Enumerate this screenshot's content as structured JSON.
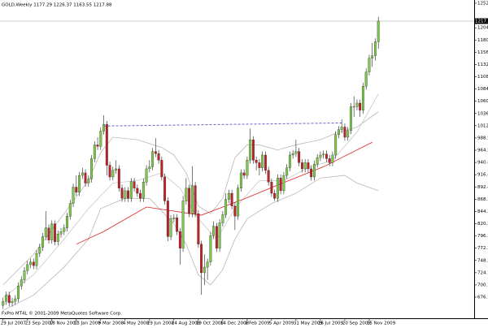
{
  "chart_data": {
    "type": "candlestick",
    "title": "GOLD,Weekly  1177.29 1226.37 1163.55 1217.88",
    "footer": "FxPro MT4L © 2001-2009 MetaQuotes Software Corp.",
    "up_color": "#7cc84a",
    "down_color": "#c0202a",
    "open": [
      660,
      668,
      680,
      665,
      668,
      673,
      698,
      710,
      728,
      740,
      745,
      738,
      762,
      774,
      795,
      812,
      788,
      820,
      785,
      800,
      805,
      812,
      835,
      860,
      892,
      882,
      915,
      920,
      900,
      908,
      948,
      975,
      972,
      1002,
      1015,
      935,
      912,
      925,
      928,
      890,
      870,
      885,
      870,
      903,
      890,
      880,
      870,
      902,
      928,
      932,
      962,
      958,
      945,
      912,
      865,
      795,
      830,
      832,
      805,
      772,
      865,
      890,
      840,
      895,
      840,
      780,
      724,
      735,
      745,
      797,
      815,
      772,
      822,
      838,
      868,
      880,
      855,
      835,
      890,
      920,
      915,
      945,
      985,
      945,
      940,
      930,
      955,
      925,
      902,
      880,
      870,
      910,
      885,
      915,
      930,
      955,
      958,
      962,
      940,
      928,
      940,
      928,
      912,
      937,
      950,
      955,
      957,
      948,
      940,
      955,
      995,
      1005,
      1010,
      990,
      1003,
      1050,
      1050,
      1057,
      1043,
      1090,
      1118,
      1145,
      1150,
      1177.29
    ],
    "high": [
      675,
      687,
      687,
      675,
      680,
      705,
      717,
      735,
      747,
      752,
      752,
      769,
      781,
      802,
      845,
      819,
      827,
      827,
      807,
      812,
      819,
      842,
      867,
      899,
      915,
      922,
      930,
      927,
      915,
      955,
      982,
      990,
      1009,
      1033,
      1022,
      942,
      932,
      945,
      935,
      897,
      892,
      892,
      910,
      910,
      897,
      887,
      909,
      935,
      945,
      969,
      988,
      965,
      952,
      919,
      872,
      837,
      839,
      839,
      812,
      875,
      910,
      897,
      933,
      902,
      847,
      787,
      760,
      752,
      804,
      825,
      822,
      829,
      845,
      880,
      887,
      887,
      862,
      897,
      927,
      927,
      952,
      1007,
      992,
      952,
      947,
      962,
      962,
      932,
      909,
      887,
      917,
      917,
      922,
      937,
      962,
      965,
      985,
      969,
      947,
      947,
      947,
      935,
      944,
      957,
      962,
      964,
      964,
      955,
      962,
      1002,
      1012,
      1025,
      1017,
      1010,
      1057,
      1070,
      1064,
      1064,
      1097,
      1125,
      1152,
      1175,
      1184,
      1226.37
    ],
    "low": [
      653,
      661,
      658,
      658,
      661,
      666,
      691,
      703,
      721,
      733,
      731,
      731,
      755,
      767,
      788,
      781,
      781,
      778,
      778,
      793,
      798,
      805,
      828,
      853,
      875,
      875,
      908,
      893,
      893,
      901,
      941,
      965,
      965,
      995,
      915,
      905,
      905,
      918,
      883,
      863,
      863,
      863,
      863,
      883,
      873,
      863,
      863,
      895,
      921,
      925,
      951,
      938,
      905,
      858,
      786,
      788,
      823,
      798,
      740,
      765,
      858,
      833,
      833,
      833,
      773,
      681,
      700,
      710,
      738,
      790,
      765,
      765,
      815,
      831,
      861,
      848,
      808,
      828,
      883,
      908,
      908,
      938,
      938,
      925,
      915,
      923,
      918,
      895,
      873,
      865,
      863,
      878,
      878,
      908,
      923,
      948,
      951,
      933,
      921,
      921,
      921,
      905,
      905,
      930,
      943,
      948,
      941,
      933,
      933,
      948,
      988,
      998,
      983,
      983,
      996,
      1030,
      1043,
      1030,
      1036,
      1083,
      1111,
      1128,
      1140,
      1163.55
    ],
    "close": [
      668,
      680,
      665,
      668,
      673,
      698,
      710,
      728,
      740,
      745,
      738,
      762,
      774,
      795,
      812,
      788,
      820,
      785,
      800,
      805,
      812,
      835,
      860,
      892,
      882,
      915,
      920,
      900,
      908,
      948,
      975,
      972,
      1002,
      1015,
      935,
      912,
      925,
      928,
      890,
      870,
      885,
      870,
      903,
      890,
      880,
      870,
      902,
      928,
      932,
      962,
      958,
      945,
      912,
      865,
      795,
      830,
      832,
      805,
      772,
      865,
      890,
      840,
      895,
      840,
      780,
      724,
      735,
      745,
      797,
      815,
      772,
      822,
      838,
      868,
      880,
      855,
      835,
      890,
      920,
      915,
      945,
      985,
      945,
      940,
      930,
      955,
      925,
      902,
      880,
      870,
      910,
      885,
      915,
      930,
      955,
      958,
      962,
      940,
      928,
      940,
      928,
      912,
      937,
      950,
      955,
      957,
      948,
      940,
      955,
      995,
      1005,
      1010,
      990,
      1003,
      1050,
      1050,
      1057,
      1043,
      1090,
      1118,
      1145,
      1150,
      1177.29,
      1217.88
    ],
    "overlays": [
      {
        "color": "#b8b8b8",
        "x": [
          0,
          10,
          20,
          28,
          32,
          36,
          44,
          52,
          56,
          60,
          64,
          68,
          72,
          76,
          80,
          84,
          90,
          96,
          104,
          110,
          116,
          123
        ],
        "values": [
          700,
          760,
          840,
          905,
          960,
          990,
          985,
          970,
          955,
          920,
          855,
          840,
          870,
          950,
          975,
          975,
          965,
          975,
          985,
          1000,
          1010,
          1040
        ]
      },
      {
        "color": "#b8b8b8",
        "x": [
          0,
          10,
          20,
          28,
          32,
          40,
          48,
          56,
          60,
          64,
          68,
          72,
          76,
          80,
          88,
          96,
          104,
          112,
          116,
          123
        ],
        "values": [
          650,
          680,
          735,
          790,
          850,
          870,
          870,
          820,
          780,
          720,
          700,
          730,
          790,
          830,
          860,
          880,
          910,
          915,
          900,
          885
        ]
      },
      {
        "color": "#c8c8c8",
        "x": [
          0,
          10,
          20,
          28,
          36,
          44,
          52,
          58,
          64,
          70,
          76,
          84,
          92,
          100,
          108,
          116,
          123
        ],
        "values": [
          675,
          720,
          790,
          850,
          900,
          905,
          920,
          890,
          830,
          790,
          850,
          905,
          905,
          930,
          945,
          1000,
          1075
        ]
      },
      {
        "color": "#e02020",
        "x": [
          24,
          33,
          47,
          65,
          79,
          92,
          105,
          121
        ],
        "values": [
          780,
          805,
          853,
          837,
          869,
          901,
          932,
          980
        ]
      }
    ],
    "trendline": {
      "color": "#6464c8",
      "x": [
        33,
        111
      ],
      "values": [
        1012,
        1018
      ]
    },
    "last_price": {
      "value": 1217.88,
      "label": "1217.88"
    },
    "ylim": [
      636.3,
      1259.3
    ],
    "yticks": [
      {
        "value": 1252.9,
        "label": "1252.90"
      },
      1204.85,
      {
        "value": 1180.8,
        "label": "1180.80"
      },
      1156.75,
      1132.75,
      {
        "value": 1108.7,
        "label": "1108.70"
      },
      1084.65,
      1060.65,
      {
        "value": 1036.6,
        "label": "1036.60"
      },
      1012.55,
      988.55,
      {
        "value": 964.5,
        "label": "964.50"
      },
      940.45,
      916.45,
      {
        "value": 892.4,
        "label": "892.40"
      },
      868.35,
      844.35,
      {
        "value": 820.3,
        "label": "820.30"
      },
      796.25,
      772.25,
      {
        "value": 748.2,
        "label": "748.20"
      },
      724.15,
      700.15,
      {
        "value": 676.1,
        "label": "676.10"
      }
    ],
    "xlim": [
      -1,
      154.4
    ],
    "xticks": [
      {
        "value": 0,
        "label": "29 Jul 2007"
      },
      {
        "value": 8,
        "label": "23 Sep 2007"
      },
      {
        "value": 16,
        "label": "18 Nov 2007"
      },
      {
        "value": 24,
        "label": "13 Jan 2008"
      },
      {
        "value": 32,
        "label": "9 Mar 2008"
      },
      {
        "value": 40,
        "label": "4 May 2008"
      },
      {
        "value": 48,
        "label": "29 Jun 2008"
      },
      {
        "value": 56,
        "label": "24 Aug 2008"
      },
      {
        "value": 64,
        "label": "19 Oct 2008"
      },
      {
        "value": 72,
        "label": "14 Dec 2008"
      },
      {
        "value": 80,
        "label": "8 Feb 2009"
      },
      {
        "value": 88,
        "label": "5 Apr 2009"
      },
      {
        "value": 96,
        "label": "31 May 2009"
      },
      {
        "value": 104,
        "label": "26 Jul 2009"
      },
      {
        "value": 112,
        "label": "20 Sep 2009"
      },
      {
        "value": 120,
        "label": "15 Nov 2009"
      }
    ]
  }
}
